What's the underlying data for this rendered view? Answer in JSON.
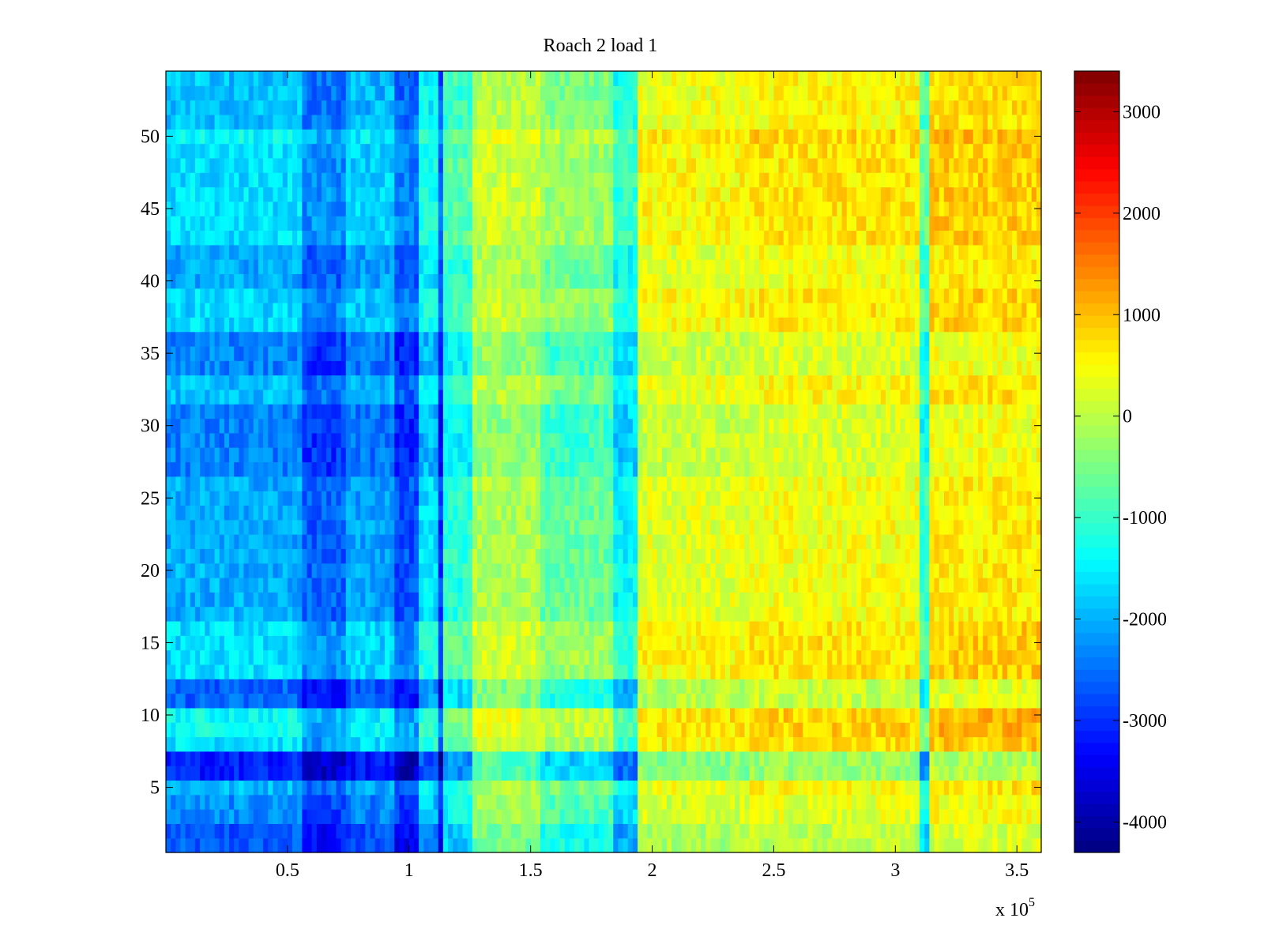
{
  "chart_data": {
    "type": "heatmap",
    "title": "Roach 2 load 1",
    "xlabel": "",
    "ylabel": "",
    "x_multiplier_label": "x 10",
    "x_multiplier_exponent": "5",
    "xlim": [
      0,
      3.6
    ],
    "ylim": [
      0.5,
      54.5
    ],
    "x_ticks": [
      0.5,
      1,
      1.5,
      2,
      2.5,
      3,
      3.5
    ],
    "x_tick_labels": [
      "0.5",
      "1",
      "1.5",
      "2",
      "2.5",
      "3",
      "3.5"
    ],
    "y_ticks": [
      5,
      10,
      15,
      20,
      25,
      30,
      35,
      40,
      45,
      50
    ],
    "y_tick_labels": [
      "5",
      "10",
      "15",
      "20",
      "25",
      "30",
      "35",
      "40",
      "45",
      "50"
    ],
    "rows": 54,
    "colormap": "jet",
    "colorbar": {
      "clim": [
        -4300,
        3400
      ],
      "ticks": [
        -4000,
        -3000,
        -2000,
        -1000,
        0,
        1000,
        2000,
        3000
      ],
      "tick_labels": [
        "-4000",
        "-3000",
        "-2000",
        "-1000",
        "0",
        "1000",
        "2000",
        "3000"
      ]
    },
    "column_profile": [
      {
        "x0": 0.0,
        "x1": 0.57,
        "value": -1700
      },
      {
        "x0": 0.57,
        "x1": 0.75,
        "value": -2300
      },
      {
        "x0": 0.75,
        "x1": 0.95,
        "value": -1800
      },
      {
        "x0": 0.95,
        "x1": 1.05,
        "value": -2400
      },
      {
        "x0": 1.05,
        "x1": 1.12,
        "value": -1300
      },
      {
        "x0": 1.12,
        "x1": 1.14,
        "value": -2600
      },
      {
        "x0": 1.14,
        "x1": 1.27,
        "value": -800
      },
      {
        "x0": 1.27,
        "x1": 1.55,
        "value": 100
      },
      {
        "x0": 1.55,
        "x1": 1.85,
        "value": -300
      },
      {
        "x0": 1.85,
        "x1": 1.95,
        "value": -1100
      },
      {
        "x0": 1.95,
        "x1": 2.4,
        "value": 500
      },
      {
        "x0": 2.4,
        "x1": 3.1,
        "value": 650
      },
      {
        "x0": 3.1,
        "x1": 3.15,
        "value": -700
      },
      {
        "x0": 3.15,
        "x1": 3.6,
        "value": 850
      }
    ],
    "row_profile": [
      {
        "y0": 1,
        "y1": 2,
        "value": -900
      },
      {
        "y0": 3,
        "y1": 4,
        "value": -500
      },
      {
        "y0": 5,
        "y1": 5,
        "value": -200
      },
      {
        "y0": 6,
        "y1": 7,
        "value": -1300
      },
      {
        "y0": 8,
        "y1": 8,
        "value": 100
      },
      {
        "y0": 9,
        "y1": 10,
        "value": 300
      },
      {
        "y0": 11,
        "y1": 12,
        "value": -800
      },
      {
        "y0": 13,
        "y1": 16,
        "value": 50
      },
      {
        "y0": 17,
        "y1": 26,
        "value": -300
      },
      {
        "y0": 27,
        "y1": 31,
        "value": -600
      },
      {
        "y0": 32,
        "y1": 33,
        "value": -200
      },
      {
        "y0": 34,
        "y1": 36,
        "value": -600
      },
      {
        "y0": 37,
        "y1": 39,
        "value": 0
      },
      {
        "y0": 40,
        "y1": 42,
        "value": -300
      },
      {
        "y0": 43,
        "y1": 49,
        "value": 50
      },
      {
        "y0": 50,
        "y1": 50,
        "value": 250
      },
      {
        "y0": 51,
        "y1": 54,
        "value": -150
      }
    ]
  }
}
